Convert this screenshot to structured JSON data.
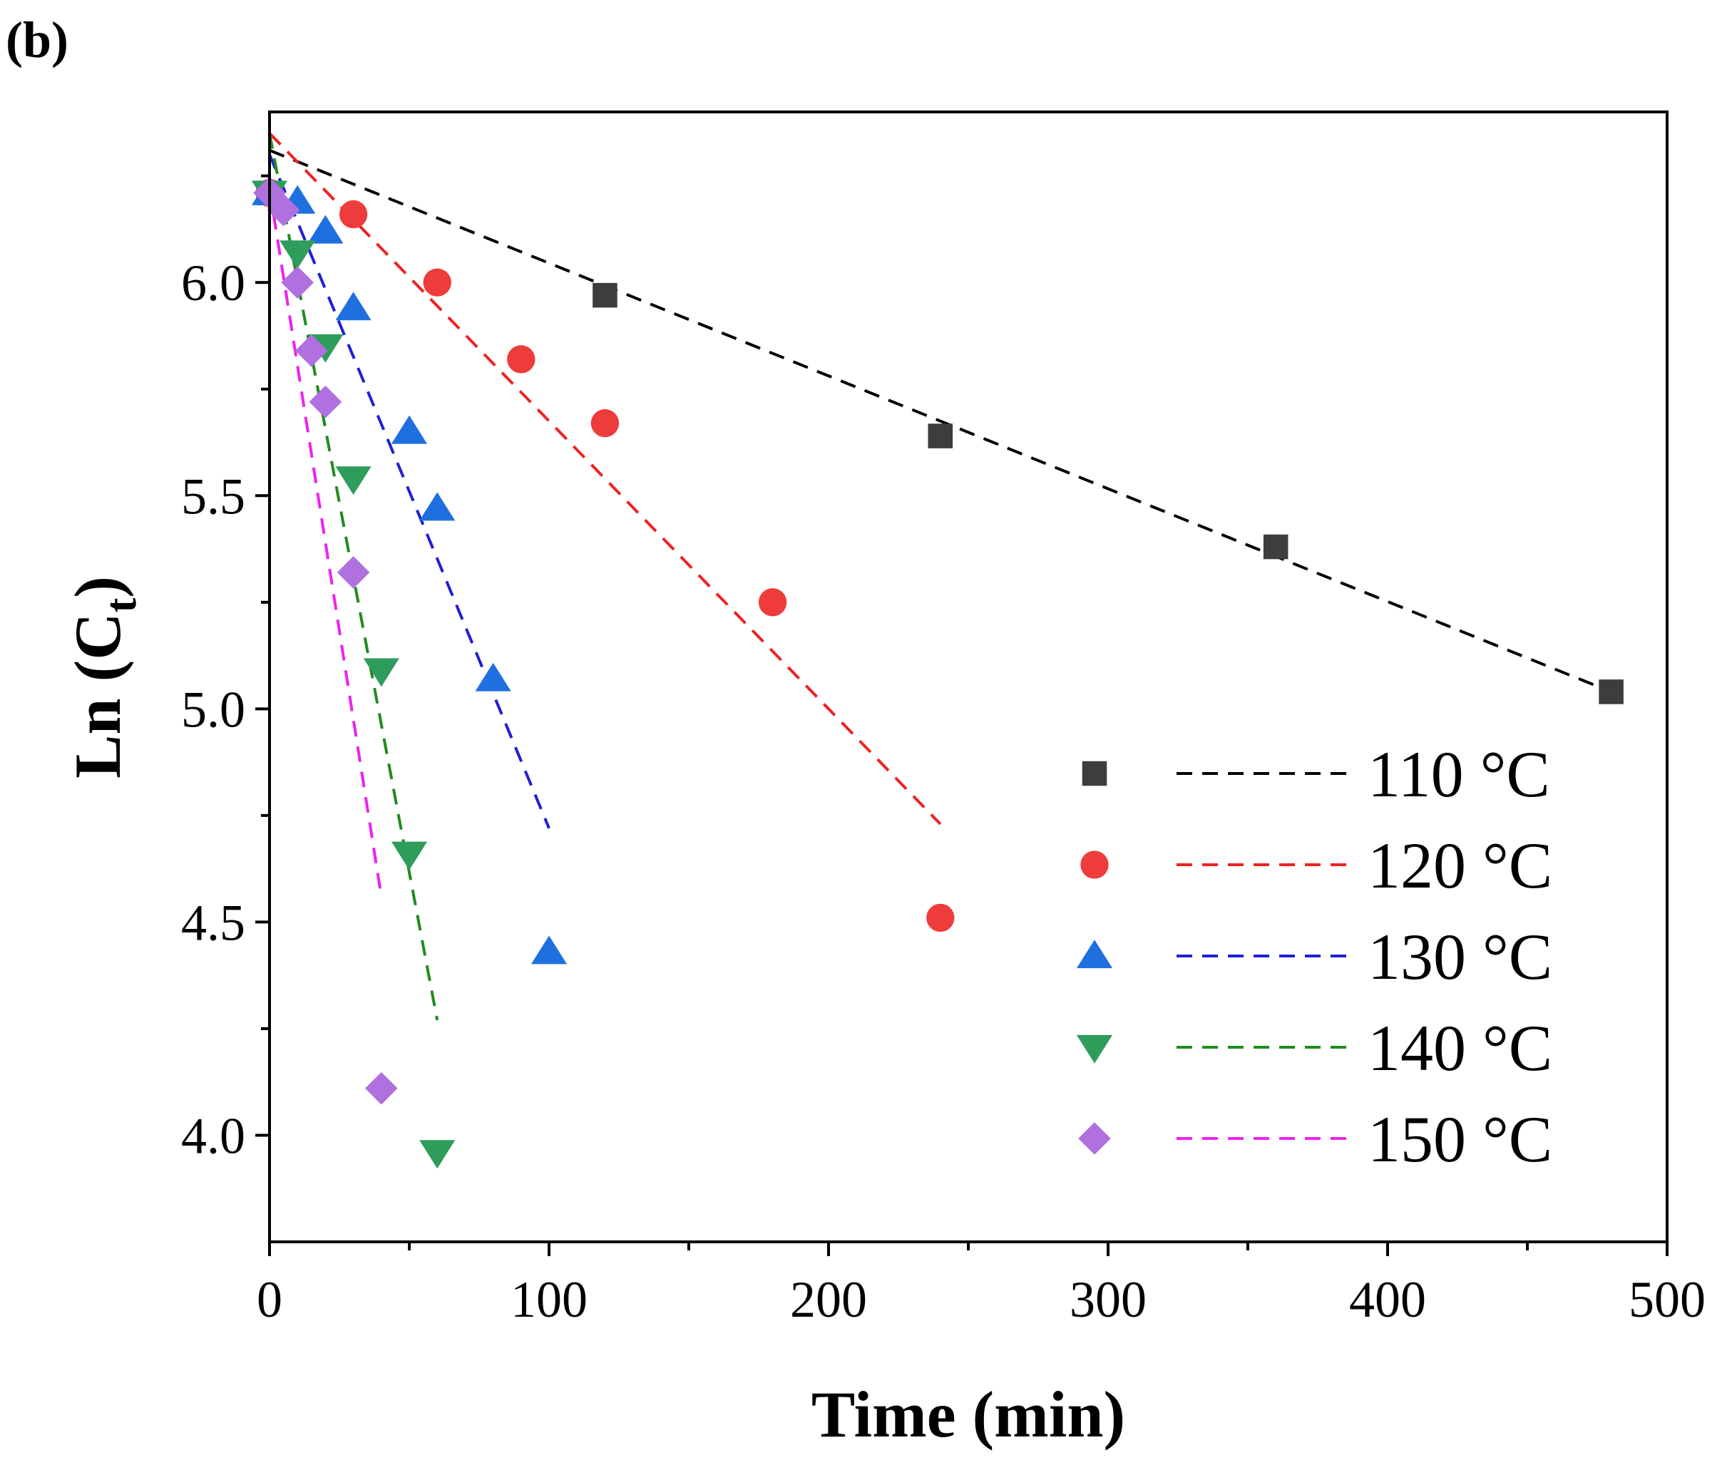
{
  "panel_label": "(b)",
  "chart_data": {
    "type": "scatter",
    "xlabel": "Time (min)",
    "ylabel_main": "Ln (C",
    "ylabel_sub": "t",
    "ylabel_close": ")",
    "xlim": [
      0,
      500
    ],
    "ylim": [
      3.75,
      6.4
    ],
    "x_ticks": [
      0,
      100,
      200,
      300,
      400,
      500
    ],
    "x_tick_labels": [
      "0",
      "100",
      "200",
      "300",
      "400",
      "500"
    ],
    "x_minor_ticks": [
      50,
      150,
      250,
      350,
      450
    ],
    "y_ticks": [
      4.0,
      4.5,
      5.0,
      5.5,
      6.0
    ],
    "y_tick_labels": [
      "4.0",
      "4.5",
      "5.0",
      "5.5",
      "6.0"
    ],
    "y_minor_ticks": [
      4.25,
      4.75,
      5.25,
      5.75,
      6.25
    ],
    "grid": false,
    "legend_position": "bottom-right",
    "series": [
      {
        "name": "110 °C",
        "marker": "square",
        "color": "#3d3d3d",
        "line_color": "#000000",
        "x": [
          0,
          120,
          240,
          360,
          480
        ],
        "y": [
          6.21,
          5.97,
          5.64,
          5.38,
          5.04
        ],
        "fit": [
          [
            0,
            6.31
          ],
          [
            480,
            5.04
          ]
        ]
      },
      {
        "name": "120 °C",
        "marker": "circle",
        "color": "#ee3b3b",
        "line_color": "#ee2222",
        "x": [
          0,
          30,
          60,
          90,
          120,
          180,
          240
        ],
        "y": [
          6.21,
          6.16,
          6.0,
          5.82,
          5.67,
          5.25,
          4.51
        ],
        "fit": [
          [
            0,
            6.35
          ],
          [
            240,
            4.73
          ]
        ]
      },
      {
        "name": "130 °C",
        "marker": "triangle-up",
        "color": "#1f6fe0",
        "line_color": "#1f1fd6",
        "x": [
          0,
          10,
          20,
          30,
          50,
          60,
          80,
          100
        ],
        "y": [
          6.21,
          6.19,
          6.12,
          5.94,
          5.65,
          5.47,
          5.07,
          4.43
        ],
        "fit": [
          [
            0,
            6.3
          ],
          [
            100,
            4.72
          ]
        ]
      },
      {
        "name": "140 °C",
        "marker": "triangle-down",
        "color": "#2e9d5b",
        "line_color": "#1f8c1f",
        "x": [
          0,
          10,
          20,
          30,
          40,
          50,
          60
        ],
        "y": [
          6.21,
          6.07,
          5.85,
          5.54,
          5.09,
          4.66,
          3.96
        ],
        "fit": [
          [
            0,
            6.35
          ],
          [
            60,
            4.27
          ]
        ]
      },
      {
        "name": "150 °C",
        "marker": "diamond",
        "color": "#b070e0",
        "line_color": "#ee22ee",
        "x": [
          0,
          5,
          10,
          15,
          20,
          30,
          40
        ],
        "y": [
          6.21,
          6.17,
          6.0,
          5.84,
          5.72,
          5.32,
          4.11
        ],
        "fit": [
          [
            0,
            6.22
          ],
          [
            40,
            4.56
          ]
        ]
      }
    ]
  }
}
